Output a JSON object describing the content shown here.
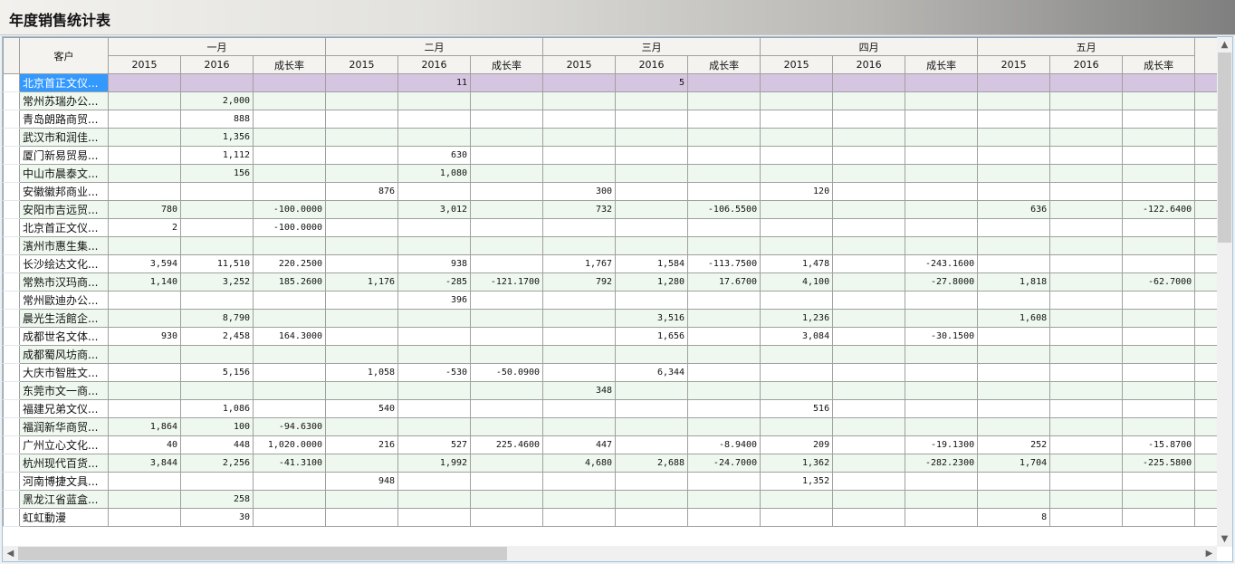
{
  "window": {
    "title": "年度销售统计表"
  },
  "colors": {
    "selected_row": "#d6c5e1",
    "selected_cell": "#3399ff",
    "alt_row": "#eef8ee",
    "grid": "#a0a0a0"
  },
  "table": {
    "customer_header": "客户",
    "months": [
      "一月",
      "二月",
      "三月",
      "四月",
      "五月"
    ],
    "sub_headers": [
      "2015",
      "2016",
      "成长率"
    ],
    "selected_row": 0,
    "rows": [
      {
        "name": "北京首正文仪...",
        "values": [
          "",
          "",
          "",
          "",
          "11",
          "",
          "",
          "5",
          "",
          "",
          "",
          "",
          "",
          "",
          ""
        ]
      },
      {
        "name": "常州苏瑞办公...",
        "values": [
          "",
          "2,000",
          "",
          "",
          "",
          "",
          "",
          "",
          "",
          "",
          "",
          "",
          "",
          "",
          ""
        ]
      },
      {
        "name": "青岛朗路商贸...",
        "values": [
          "",
          "888",
          "",
          "",
          "",
          "",
          "",
          "",
          "",
          "",
          "",
          "",
          "",
          "",
          ""
        ]
      },
      {
        "name": "武汉市和润佳...",
        "values": [
          "",
          "1,356",
          "",
          "",
          "",
          "",
          "",
          "",
          "",
          "",
          "",
          "",
          "",
          "",
          ""
        ]
      },
      {
        "name": "厦门新易贸易...",
        "values": [
          "",
          "1,112",
          "",
          "",
          "630",
          "",
          "",
          "",
          "",
          "",
          "",
          "",
          "",
          "",
          ""
        ]
      },
      {
        "name": "中山市晨泰文...",
        "values": [
          "",
          "156",
          "",
          "",
          "1,080",
          "",
          "",
          "",
          "",
          "",
          "",
          "",
          "",
          "",
          ""
        ]
      },
      {
        "name": "安徽徽邦商业...",
        "values": [
          "",
          "",
          "",
          "876",
          "",
          "",
          "300",
          "",
          "",
          "120",
          "",
          "",
          "",
          "",
          ""
        ]
      },
      {
        "name": "安阳市吉远贸...",
        "values": [
          "780",
          "",
          "-100.0000",
          "",
          "3,012",
          "",
          "732",
          "",
          "-106.5500",
          "",
          "",
          "",
          "636",
          "",
          "-122.6400"
        ]
      },
      {
        "name": "北京首正文仪...",
        "values": [
          "2",
          "",
          "-100.0000",
          "",
          "",
          "",
          "",
          "",
          "",
          "",
          "",
          "",
          "",
          "",
          ""
        ]
      },
      {
        "name": "濱州市惠生集...",
        "values": [
          "",
          "",
          "",
          "",
          "",
          "",
          "",
          "",
          "",
          "",
          "",
          "",
          "",
          "",
          ""
        ]
      },
      {
        "name": "长沙绘达文化...",
        "values": [
          "3,594",
          "11,510",
          "220.2500",
          "",
          "938",
          "",
          "1,767",
          "1,584",
          "-113.7500",
          "1,478",
          "",
          "-243.1600",
          "",
          "",
          ""
        ]
      },
      {
        "name": "常熟市汉玛商...",
        "values": [
          "1,140",
          "3,252",
          "185.2600",
          "1,176",
          "-285",
          "-121.1700",
          "792",
          "1,280",
          "17.6700",
          "4,100",
          "",
          "-27.8000",
          "1,818",
          "",
          "-62.7000"
        ]
      },
      {
        "name": "常州歐迪办公...",
        "values": [
          "",
          "",
          "",
          "",
          "396",
          "",
          "",
          "",
          "",
          "",
          "",
          "",
          "",
          "",
          ""
        ]
      },
      {
        "name": "晨光生活館企...",
        "values": [
          "",
          "8,790",
          "",
          "",
          "",
          "",
          "",
          "3,516",
          "",
          "1,236",
          "",
          "",
          "1,608",
          "",
          ""
        ]
      },
      {
        "name": "成都世名文体...",
        "values": [
          "930",
          "2,458",
          "164.3000",
          "",
          "",
          "",
          "",
          "1,656",
          "",
          "3,084",
          "",
          "-30.1500",
          "",
          "",
          ""
        ]
      },
      {
        "name": "成都蜀风坊商...",
        "values": [
          "",
          "",
          "",
          "",
          "",
          "",
          "",
          "",
          "",
          "",
          "",
          "",
          "",
          "",
          ""
        ]
      },
      {
        "name": "大庆市智胜文...",
        "values": [
          "",
          "5,156",
          "",
          "1,058",
          "-530",
          "-50.0900",
          "",
          "6,344",
          "",
          "",
          "",
          "",
          "",
          "",
          ""
        ]
      },
      {
        "name": "东莞市文一商...",
        "values": [
          "",
          "",
          "",
          "",
          "",
          "",
          "348",
          "",
          "",
          "",
          "",
          "",
          "",
          "",
          ""
        ]
      },
      {
        "name": "福建兄弟文仪...",
        "values": [
          "",
          "1,086",
          "",
          "540",
          "",
          "",
          "",
          "",
          "",
          "516",
          "",
          "",
          "",
          "",
          ""
        ]
      },
      {
        "name": "福润新华商贸...",
        "values": [
          "1,864",
          "100",
          "-94.6300",
          "",
          "",
          "",
          "",
          "",
          "",
          "",
          "",
          "",
          "",
          "",
          ""
        ]
      },
      {
        "name": "广州立心文化...",
        "values": [
          "40",
          "448",
          "1,020.0000",
          "216",
          "527",
          "225.4600",
          "447",
          "",
          "-8.9400",
          "209",
          "",
          "-19.1300",
          "252",
          "",
          "-15.8700"
        ]
      },
      {
        "name": "杭州现代百货...",
        "values": [
          "3,844",
          "2,256",
          "-41.3100",
          "",
          "1,992",
          "",
          "4,680",
          "2,688",
          "-24.7000",
          "1,362",
          "",
          "-282.2300",
          "1,704",
          "",
          "-225.5800"
        ]
      },
      {
        "name": "河南博捷文具...",
        "values": [
          "",
          "",
          "",
          "948",
          "",
          "",
          "",
          "",
          "",
          "1,352",
          "",
          "",
          "",
          "",
          ""
        ]
      },
      {
        "name": "黑龙江省蓝盒...",
        "values": [
          "",
          "258",
          "",
          "",
          "",
          "",
          "",
          "",
          "",
          "",
          "",
          "",
          "",
          "",
          ""
        ]
      },
      {
        "name": "虹虹動漫",
        "values": [
          "",
          "30",
          "",
          "",
          "",
          "",
          "",
          "",
          "",
          "",
          "",
          "",
          "8",
          "",
          ""
        ]
      }
    ]
  },
  "scrollbars": {
    "up_icon": "chevron-up-icon",
    "down_icon": "chevron-down-icon",
    "left_icon": "chevron-left-icon",
    "right_icon": "chevron-right-icon"
  }
}
